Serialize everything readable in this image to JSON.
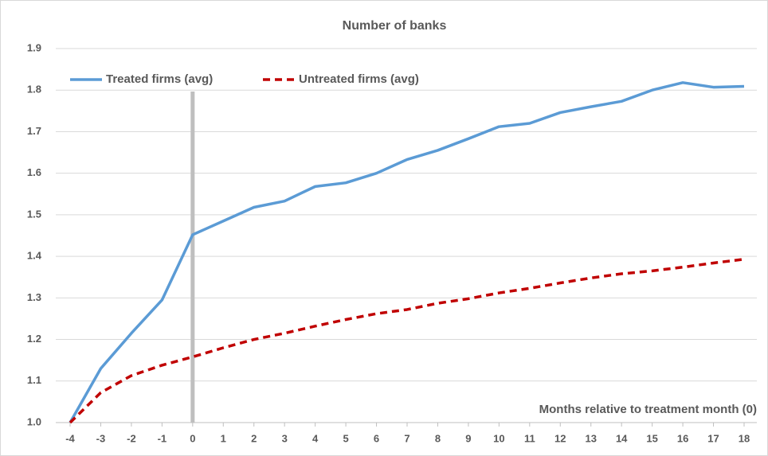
{
  "chart_data": {
    "type": "line",
    "title": "Number of banks",
    "x_label": "Months relative to treatment month (0)",
    "x": [
      -4,
      -3,
      -2,
      -1,
      0,
      1,
      2,
      3,
      4,
      5,
      6,
      7,
      8,
      9,
      10,
      11,
      12,
      13,
      14,
      15,
      16,
      17,
      18
    ],
    "series": [
      {
        "name": "Treated firms (avg)",
        "color": "#5b9bd5",
        "dash": false,
        "values": [
          1.0,
          1.13,
          1.215,
          1.295,
          1.452,
          1.485,
          1.518,
          1.533,
          1.568,
          1.577,
          1.6,
          1.633,
          1.655,
          1.683,
          1.712,
          1.72,
          1.746,
          1.76,
          1.773,
          1.8,
          1.818,
          1.807,
          1.809
        ]
      },
      {
        "name": "Untreated firms (avg)",
        "color": "#c00000",
        "dash": true,
        "values": [
          1.0,
          1.072,
          1.113,
          1.138,
          1.158,
          1.18,
          1.2,
          1.215,
          1.232,
          1.248,
          1.262,
          1.272,
          1.287,
          1.298,
          1.312,
          1.323,
          1.336,
          1.348,
          1.358,
          1.365,
          1.374,
          1.384,
          1.393
        ]
      }
    ],
    "vline": 0,
    "vline_color": "#bfbfbf",
    "xlim": [
      -4,
      18
    ],
    "xticks": [
      -4,
      -3,
      -2,
      -1,
      0,
      1,
      2,
      3,
      4,
      5,
      6,
      7,
      8,
      9,
      10,
      11,
      12,
      13,
      14,
      15,
      16,
      17,
      18
    ],
    "ylim": [
      1.0,
      1.9
    ],
    "yticks": [
      {
        "value": 1,
        "label": "1.0"
      },
      1.1,
      1.2,
      1.3,
      1.4,
      1.5,
      1.6,
      1.7,
      1.8,
      1.9
    ],
    "grid": true,
    "legend": "top-left"
  }
}
